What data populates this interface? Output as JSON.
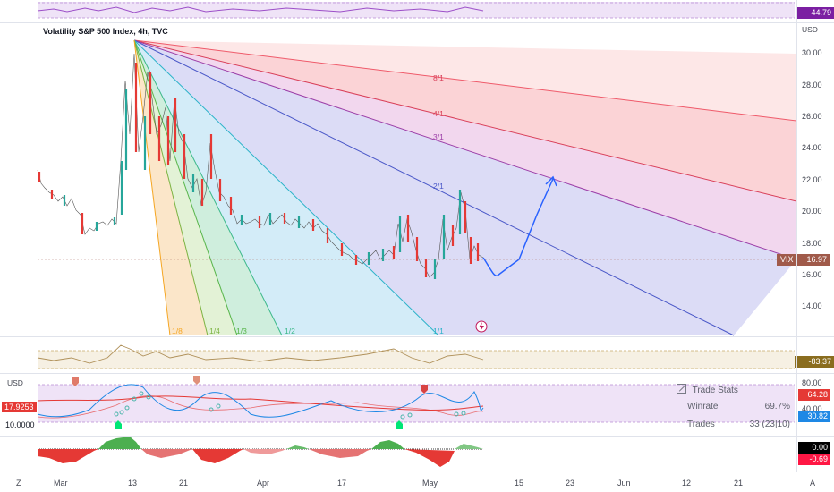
{
  "chart": {
    "title": "Volatility S&P 500 Index, 4h, TVC",
    "currency": "USD",
    "price_axis": [
      "30.00",
      "28.00",
      "26.00",
      "24.00",
      "22.00",
      "20.00",
      "18.00",
      "16.00",
      "14.00"
    ],
    "last_price": {
      "symbol": "VIX",
      "value": "16.97",
      "color": "#a05a4a"
    },
    "fan_labels": [
      "8/1",
      "4/1",
      "3/1",
      "2/1",
      "1/1",
      "1/2",
      "1/3",
      "1/4",
      "1/8"
    ]
  },
  "top_indicator": {
    "value": "44.79",
    "color": "#7b1fa2"
  },
  "mid_indicator": {
    "value": "-83.37",
    "color": "#8a6d1f"
  },
  "oscillator": {
    "currency": "USD",
    "left_value": "17.9253",
    "left_value_color": "#e53935",
    "left_low": "10.0000",
    "axis": [
      "80.00",
      "40.00"
    ],
    "tags": [
      {
        "value": "64.28",
        "color": "#e53935"
      },
      {
        "value": "30.82",
        "color": "#1e88e5"
      }
    ]
  },
  "histogram": {
    "tags": [
      {
        "value": "0.00",
        "color": "#000000"
      },
      {
        "value": "-0.69",
        "color": "#ff1744"
      }
    ]
  },
  "trade_stats": {
    "title": "Trade Stats",
    "winrate_label": "Winrate",
    "winrate_value": "69.7%",
    "trades_label": "Trades",
    "trades_value": "33 (23|10)"
  },
  "time_axis": [
    "Mar",
    "13",
    "21",
    "Apr",
    "17",
    "May",
    "15",
    "23",
    "Jun",
    "12",
    "21"
  ],
  "corner_buttons": {
    "left": "Z",
    "right": "A"
  }
}
